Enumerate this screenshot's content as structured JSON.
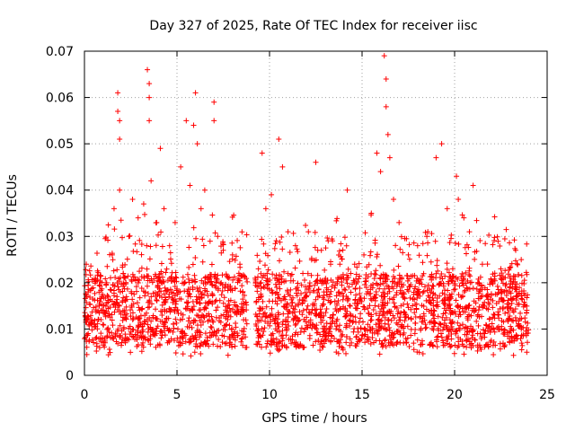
{
  "chart_data": {
    "type": "scatter",
    "title": "Day 327 of 2025, Rate Of TEC Index for receiver iisc",
    "xlabel": "GPS time / hours",
    "ylabel": "ROTI / TECUs",
    "xlim": [
      0,
      25
    ],
    "ylim": [
      0,
      0.07
    ],
    "x_ticks": [
      "0",
      "5",
      "10",
      "15",
      "20",
      "25"
    ],
    "y_ticks": [
      "0",
      "0.01",
      "0.02",
      "0.03",
      "0.04",
      "0.05",
      "0.06",
      "0.07"
    ],
    "grid": true,
    "marker": "+",
    "color": "#ff0000",
    "data_gaps_hours": [
      [
        8.8,
        9.2
      ]
    ],
    "series": [
      {
        "name": "ROTI",
        "points": [
          [
            0.1,
            0.024
          ],
          [
            0.2,
            0.018
          ],
          [
            0.4,
            0.012
          ],
          [
            0.6,
            0.008
          ],
          [
            0.8,
            0.015
          ],
          [
            1.0,
            0.011
          ],
          [
            1.2,
            0.02
          ],
          [
            1.5,
            0.026
          ],
          [
            1.6,
            0.036
          ],
          [
            1.8,
            0.057
          ],
          [
            1.8,
            0.061
          ],
          [
            1.9,
            0.055
          ],
          [
            1.9,
            0.051
          ],
          [
            1.9,
            0.04
          ],
          [
            2.1,
            0.022
          ],
          [
            2.4,
            0.03
          ],
          [
            2.6,
            0.038
          ],
          [
            2.9,
            0.034
          ],
          [
            3.2,
            0.037
          ],
          [
            3.4,
            0.066
          ],
          [
            3.5,
            0.063
          ],
          [
            3.5,
            0.06
          ],
          [
            3.5,
            0.055
          ],
          [
            3.6,
            0.042
          ],
          [
            3.9,
            0.033
          ],
          [
            4.1,
            0.049
          ],
          [
            4.3,
            0.036
          ],
          [
            4.6,
            0.028
          ],
          [
            4.9,
            0.033
          ],
          [
            5.2,
            0.045
          ],
          [
            5.5,
            0.055
          ],
          [
            5.7,
            0.041
          ],
          [
            5.9,
            0.054
          ],
          [
            6.0,
            0.061
          ],
          [
            6.1,
            0.05
          ],
          [
            6.3,
            0.036
          ],
          [
            6.5,
            0.04
          ],
          [
            7.0,
            0.055
          ],
          [
            7.0,
            0.059
          ],
          [
            7.2,
            0.03
          ],
          [
            7.5,
            0.027
          ],
          [
            7.8,
            0.021
          ],
          [
            8.0,
            0.026
          ],
          [
            8.4,
            0.024
          ],
          [
            8.6,
            0.012
          ],
          [
            8.7,
            0.006
          ],
          [
            9.4,
            0.023
          ],
          [
            9.6,
            0.048
          ],
          [
            9.8,
            0.036
          ],
          [
            10.1,
            0.039
          ],
          [
            10.5,
            0.051
          ],
          [
            10.7,
            0.045
          ],
          [
            11.0,
            0.031
          ],
          [
            11.4,
            0.028
          ],
          [
            11.8,
            0.022
          ],
          [
            12.1,
            0.031
          ],
          [
            12.5,
            0.046
          ],
          [
            12.8,
            0.027
          ],
          [
            13.3,
            0.024
          ],
          [
            13.8,
            0.024
          ],
          [
            14.2,
            0.04
          ],
          [
            14.6,
            0.024
          ],
          [
            15.1,
            0.026
          ],
          [
            15.5,
            0.035
          ],
          [
            15.8,
            0.048
          ],
          [
            16.0,
            0.044
          ],
          [
            16.2,
            0.069
          ],
          [
            16.3,
            0.064
          ],
          [
            16.3,
            0.058
          ],
          [
            16.4,
            0.052
          ],
          [
            16.5,
            0.047
          ],
          [
            16.7,
            0.038
          ],
          [
            17.0,
            0.033
          ],
          [
            17.5,
            0.026
          ],
          [
            18.0,
            0.028
          ],
          [
            18.5,
            0.03
          ],
          [
            19.0,
            0.047
          ],
          [
            19.3,
            0.05
          ],
          [
            19.6,
            0.036
          ],
          [
            19.9,
            0.023
          ],
          [
            20.1,
            0.043
          ],
          [
            20.2,
            0.038
          ],
          [
            20.5,
            0.034
          ],
          [
            20.8,
            0.031
          ],
          [
            21.0,
            0.041
          ],
          [
            21.5,
            0.024
          ],
          [
            22.0,
            0.02
          ],
          [
            22.5,
            0.023
          ],
          [
            23.0,
            0.021
          ],
          [
            23.3,
            0.027
          ],
          [
            23.6,
            0.025
          ],
          [
            23.9,
            0.005
          ]
        ]
      }
    ]
  }
}
